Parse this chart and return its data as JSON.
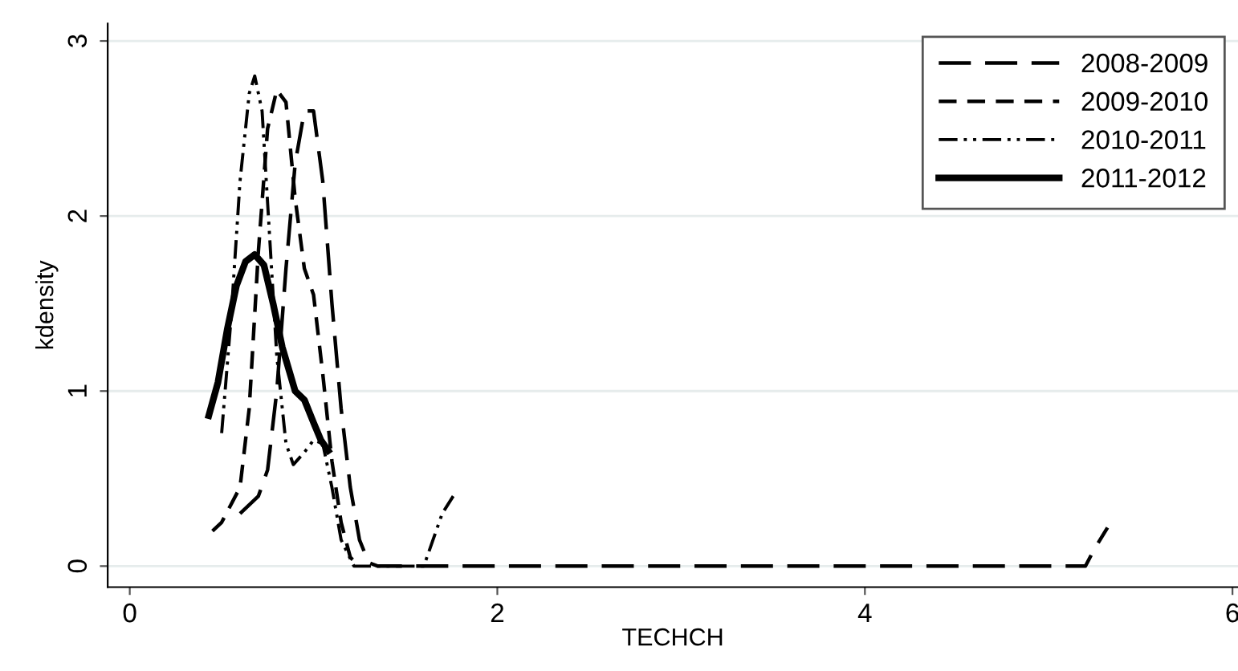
{
  "chart_data": {
    "type": "line",
    "xlabel": "TECHCH",
    "ylabel": "kdensity",
    "xlim": [
      -0.12,
      6.03
    ],
    "xticks": [
      0,
      2,
      4,
      6
    ],
    "ylim": [
      -0.12,
      3.1
    ],
    "yticks": [
      0,
      1,
      2,
      3
    ],
    "grid": "y",
    "legend": "top right",
    "marker": "none",
    "series": [
      {
        "name": "2008-2009",
        "color": "#000000",
        "line_style": "longdash",
        "x": [
          0.6,
          0.7,
          0.75,
          0.8,
          0.85,
          0.9,
          0.95,
          1.0,
          1.05,
          1.1,
          1.15,
          1.2,
          1.25,
          1.3,
          1.35,
          5.2,
          5.25,
          5.32
        ],
        "values": [
          0.3,
          0.4,
          0.55,
          1.0,
          1.7,
          2.3,
          2.6,
          2.6,
          2.2,
          1.5,
          0.9,
          0.45,
          0.15,
          0.02,
          0,
          0,
          0.1,
          0.22
        ]
      },
      {
        "name": "2009-2010",
        "color": "#000000",
        "line_style": "dashed",
        "x": [
          0.45,
          0.5,
          0.55,
          0.6,
          0.65,
          0.7,
          0.75,
          0.8,
          0.85,
          0.9,
          0.95,
          1.0,
          1.05,
          1.1,
          1.15,
          1.2,
          1.25
        ],
        "values": [
          0.2,
          0.25,
          0.35,
          0.45,
          0.9,
          1.8,
          2.5,
          2.72,
          2.65,
          2.1,
          1.7,
          1.55,
          1.1,
          0.6,
          0.25,
          0.05,
          0
        ]
      },
      {
        "name": "2010-2011",
        "color": "#000000",
        "line_style": "dashdot",
        "x": [
          0.5,
          0.55,
          0.6,
          0.65,
          0.68,
          0.72,
          0.76,
          0.8,
          0.85,
          0.89,
          0.95,
          1.0,
          1.05,
          1.1,
          1.15,
          1.22,
          1.6,
          1.65,
          1.7,
          1.76
        ],
        "values": [
          0.76,
          1.4,
          2.2,
          2.7,
          2.8,
          2.6,
          1.9,
          1.2,
          0.7,
          0.58,
          0.65,
          0.72,
          0.7,
          0.45,
          0.15,
          0,
          0,
          0.15,
          0.3,
          0.4
        ]
      },
      {
        "name": "2011-2012",
        "color": "#000000",
        "line_style": "solid",
        "x": [
          0.43,
          0.48,
          0.53,
          0.58,
          0.63,
          0.68,
          0.73,
          0.78,
          0.83,
          0.9,
          0.95,
          1.0,
          1.04,
          1.08
        ],
        "values": [
          0.86,
          1.05,
          1.35,
          1.6,
          1.74,
          1.78,
          1.72,
          1.5,
          1.25,
          1.0,
          0.95,
          0.82,
          0.72,
          0.66
        ]
      }
    ]
  }
}
